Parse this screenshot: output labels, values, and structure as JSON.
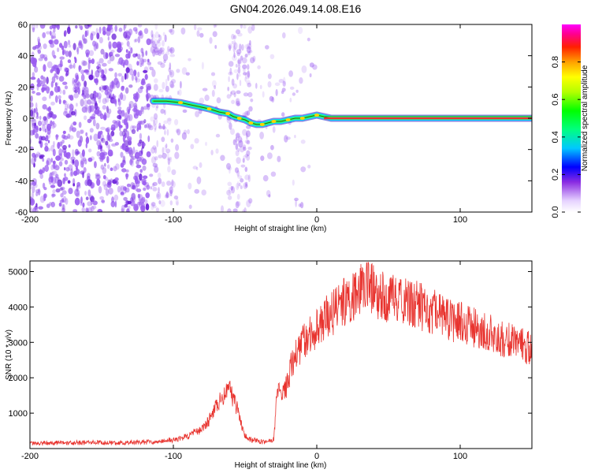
{
  "title": "GN04.2026.049.14.08.E16",
  "colors": {
    "snr_line": "#e8332e",
    "doppler_trace": "#1e5f1e",
    "carrier_line": "#e8332e",
    "scatter_noise": "#9a5cf0",
    "background": "#ffffff"
  },
  "chart_data": [
    {
      "id": "spectrogram",
      "type": "heatmap",
      "xlabel": "Height of straight line (km)",
      "ylabel": "Frequency (Hz)",
      "xlim": [
        -200,
        150
      ],
      "ylim": [
        -60,
        60
      ],
      "x_ticks": [
        -200,
        -100,
        0,
        100
      ],
      "y_ticks": [
        -60,
        -40,
        -20,
        0,
        20,
        40,
        60
      ],
      "x_tick_labels": [
        "-200",
        "-100",
        "0",
        "100"
      ],
      "y_tick_labels": [
        "-60",
        "-40",
        "-20",
        "0",
        "20",
        "40",
        "60"
      ],
      "noise_regions": [
        {
          "x_range": [
            -200,
            -117
          ],
          "density": "high"
        },
        {
          "x_range": [
            -117,
            -100
          ],
          "density": "medium"
        },
        {
          "x_range": [
            -100,
            -65
          ],
          "density": "low"
        },
        {
          "x_range": [
            -62,
            -46
          ],
          "density": "medium"
        },
        {
          "x_range": [
            -46,
            0
          ],
          "density": "low"
        }
      ],
      "doppler_trace": {
        "x": [
          -114,
          -105,
          -95,
          -85,
          -75,
          -68,
          -62,
          -58,
          -54,
          -50,
          -46,
          -42,
          -38,
          -34,
          -30,
          -25,
          -20,
          -15,
          -10,
          -5,
          0,
          5,
          10,
          150
        ],
        "y": [
          11,
          11,
          10,
          8,
          6,
          4,
          3,
          1,
          0,
          -1,
          -3,
          -4,
          -4,
          -3,
          -2,
          -2,
          -1,
          0,
          0,
          1,
          2,
          1,
          0,
          0
        ]
      },
      "colorbar": {
        "label": "Normalized spectral amplitude",
        "range": [
          0,
          1
        ],
        "ticks": [
          0.0,
          0.2,
          0.4,
          0.6,
          0.8
        ],
        "tick_labels": [
          "0.0",
          "0.2",
          "0.4",
          "0.6",
          "0.8"
        ]
      }
    },
    {
      "id": "snr",
      "type": "line",
      "xlabel": "Height of straight line (km)",
      "ylabel": "SNR (10 * v/v)",
      "xlim": [
        -200,
        150
      ],
      "ylim": [
        0,
        5300
      ],
      "x_ticks": [
        -200,
        -100,
        0,
        100
      ],
      "y_ticks": [
        1000,
        2000,
        3000,
        4000,
        5000
      ],
      "x_tick_labels": [
        "-200",
        "-100",
        "0",
        "100"
      ],
      "y_tick_labels": [
        "1000",
        "2000",
        "3000",
        "4000",
        "5000"
      ],
      "series": [
        {
          "name": "SNR",
          "x": [
            -200,
            -180,
            -160,
            -140,
            -120,
            -110,
            -100,
            -90,
            -80,
            -75,
            -70,
            -65,
            -62,
            -60,
            -58,
            -55,
            -52,
            -50,
            -48,
            -45,
            -40,
            -35,
            -30,
            -28,
            -26,
            -25,
            -23,
            -20,
            -18,
            -15,
            -12,
            -10,
            -5,
            0,
            5,
            10,
            15,
            20,
            25,
            30,
            33,
            36,
            38,
            40,
            45,
            50,
            55,
            60,
            70,
            80,
            90,
            100,
            110,
            120,
            130,
            140,
            150
          ],
          "y": [
            150,
            160,
            170,
            160,
            180,
            200,
            250,
            350,
            550,
            800,
            1200,
            1500,
            1800,
            1600,
            1350,
            1100,
            600,
            350,
            280,
            250,
            200,
            180,
            250,
            1400,
            1700,
            1500,
            1600,
            1850,
            2300,
            2600,
            2800,
            3000,
            3200,
            3400,
            3700,
            3800,
            4000,
            4150,
            4300,
            4450,
            4700,
            4750,
            4600,
            4400,
            4300,
            4250,
            4200,
            4150,
            4050,
            3900,
            3700,
            3550,
            3400,
            3250,
            3100,
            2950,
            2800
          ]
        }
      ]
    }
  ]
}
